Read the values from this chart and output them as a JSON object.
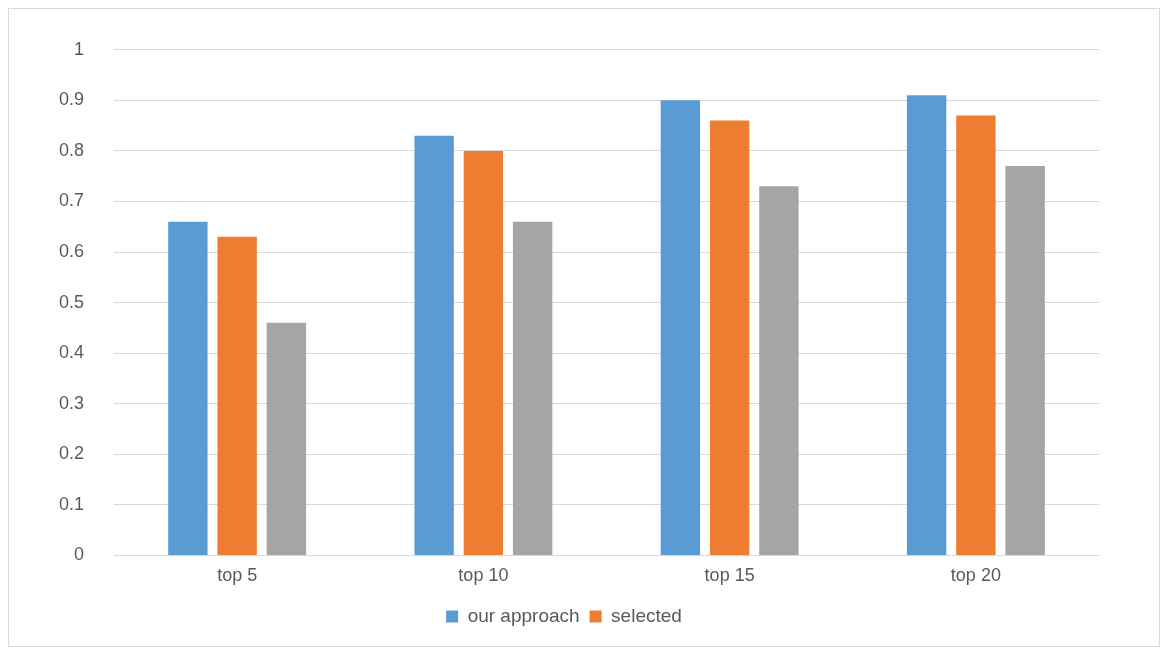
{
  "chart_data": {
    "type": "bar",
    "categories": [
      "top 5",
      "top 10",
      "top 15",
      "top 20"
    ],
    "series": [
      {
        "name": "our approach",
        "color": "#5b9bd5",
        "values": [
          0.66,
          0.83,
          0.9,
          0.91
        ]
      },
      {
        "name": "selected",
        "color": "#ed7d31",
        "values": [
          0.63,
          0.8,
          0.86,
          0.87
        ]
      },
      {
        "color": "#a5a5a5",
        "values": [
          0.46,
          0.66,
          0.73,
          0.77
        ]
      }
    ],
    "ylim": [
      0,
      1
    ],
    "yticks": [
      0,
      0.1,
      0.2,
      0.3,
      0.4,
      0.5,
      0.6,
      0.7,
      0.8,
      0.9,
      1
    ],
    "grid": "y",
    "legend": "bottom"
  }
}
